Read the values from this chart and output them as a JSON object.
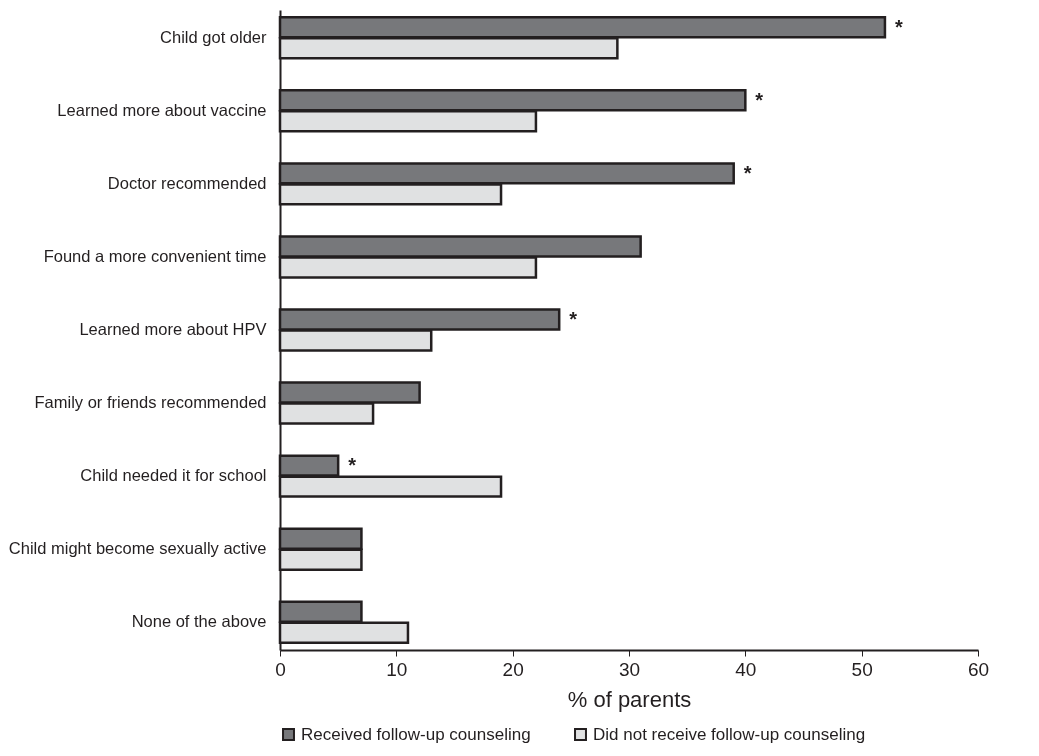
{
  "chart_data": {
    "type": "bar",
    "orientation": "horizontal",
    "xlabel": "% of parents",
    "categories": [
      "Child got older",
      "Learned more about vaccine",
      "Doctor recommended",
      "Found a more convenient time",
      "Learned more about HPV",
      "Family or friends recommended",
      "Child needed it for school",
      "Child might become sexually active",
      "None of the above"
    ],
    "series": [
      {
        "name": "Received follow-up counseling",
        "color": "#77787b",
        "values": [
          52,
          40,
          39,
          31,
          24,
          12,
          5,
          7,
          7
        ]
      },
      {
        "name": "Did not receive follow-up counseling",
        "color": "#e0e1e2",
        "values": [
          29,
          22,
          19,
          22,
          13,
          8,
          19,
          7,
          11
        ]
      }
    ],
    "xlim": [
      0,
      60
    ],
    "xticks": [
      0,
      10,
      20,
      30,
      40,
      50,
      60
    ],
    "grid": false,
    "legend": "bottom",
    "annotations": [
      {
        "text": "*",
        "x": 52,
        "y": "Child got older"
      },
      {
        "text": "*",
        "x": 40,
        "y": "Learned more about vaccine"
      },
      {
        "text": "*",
        "x": 39,
        "y": "Doctor recommended"
      },
      {
        "text": "*",
        "x": 24,
        "y": "Learned more about HPV"
      },
      {
        "text": "*",
        "x": 5,
        "y": "Child needed it for school"
      }
    ]
  }
}
